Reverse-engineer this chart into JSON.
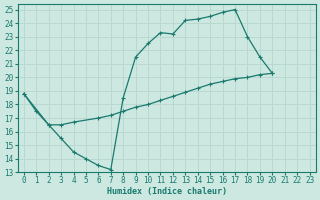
{
  "xlabel": "Humidex (Indice chaleur)",
  "bg_color": "#cce8e0",
  "line_color": "#1a7a6e",
  "grid_color": "#b8d8d0",
  "xlim": [
    -0.5,
    23.5
  ],
  "ylim": [
    13,
    25.4
  ],
  "xticks": [
    0,
    1,
    2,
    3,
    4,
    5,
    6,
    7,
    8,
    9,
    10,
    11,
    12,
    13,
    14,
    15,
    16,
    17,
    18,
    19,
    20,
    21,
    22,
    23
  ],
  "yticks": [
    13,
    14,
    15,
    16,
    17,
    18,
    19,
    20,
    21,
    22,
    23,
    24,
    25
  ],
  "line1_x": [
    0,
    1,
    2,
    3,
    4,
    5,
    6,
    7,
    8,
    9,
    10,
    11,
    12,
    13,
    14,
    15,
    16,
    17,
    18,
    19,
    20
  ],
  "line1_y": [
    18.8,
    17.5,
    16.5,
    15.5,
    14.5,
    14.0,
    13.5,
    13.2,
    18.5,
    21.5,
    22.5,
    23.3,
    23.2,
    24.2,
    24.3,
    24.5,
    24.8,
    25.0,
    23.0,
    21.5,
    20.3
  ],
  "line2_x": [
    0,
    2,
    3,
    4,
    6,
    7,
    8,
    9,
    10,
    11,
    12,
    13,
    14,
    15,
    16,
    17,
    18,
    19,
    20
  ],
  "line2_y": [
    18.8,
    16.5,
    16.5,
    16.7,
    17.0,
    17.2,
    17.5,
    17.8,
    18.0,
    18.3,
    18.6,
    18.9,
    19.2,
    19.5,
    19.7,
    19.9,
    20.0,
    20.2,
    20.3
  ]
}
